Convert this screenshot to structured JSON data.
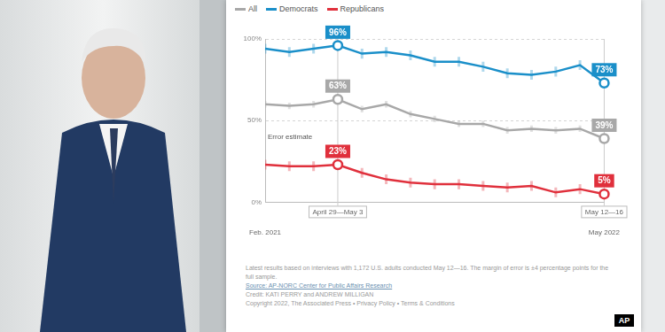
{
  "chart_data": {
    "type": "line",
    "categories": [
      "Feb. 2021",
      null,
      null,
      null,
      null,
      null,
      null,
      null,
      null,
      null,
      null,
      null,
      null,
      null,
      "May 2022"
    ],
    "series": [
      {
        "name": "All",
        "color": "#a8a8a8",
        "values": [
          60,
          59,
          60,
          63,
          57,
          60,
          54,
          51,
          48,
          48,
          44,
          45,
          44,
          45,
          39
        ],
        "errors": [
          2,
          2,
          2,
          2,
          2,
          2,
          2,
          2,
          2,
          2,
          2,
          2,
          2,
          2,
          2
        ],
        "value_labels": [
          null,
          null,
          null,
          "63%",
          null,
          null,
          null,
          null,
          null,
          null,
          null,
          null,
          null,
          null,
          "39%"
        ]
      },
      {
        "name": "Democrats",
        "color": "#1a8fc9",
        "values": [
          94,
          92,
          94,
          96,
          91,
          92,
          90,
          86,
          86,
          83,
          79,
          78,
          80,
          84,
          73
        ],
        "errors": [
          3,
          3,
          3,
          3,
          3,
          3,
          3,
          3,
          3,
          3,
          3,
          3,
          3,
          3,
          3
        ],
        "value_labels": [
          null,
          null,
          null,
          "96%",
          null,
          null,
          null,
          null,
          null,
          null,
          null,
          null,
          null,
          null,
          "73%"
        ]
      },
      {
        "name": "Republicans",
        "color": "#e0303c",
        "values": [
          23,
          22,
          22,
          23,
          18,
          14,
          12,
          11,
          11,
          10,
          9,
          10,
          6,
          8,
          5
        ],
        "errors": [
          3,
          3,
          3,
          3,
          3,
          3,
          3,
          3,
          3,
          3,
          3,
          3,
          3,
          3,
          3
        ],
        "value_labels": [
          null,
          null,
          null,
          "23%",
          null,
          null,
          null,
          null,
          null,
          null,
          null,
          null,
          null,
          null,
          "5%"
        ]
      }
    ],
    "highlights": [
      {
        "index": 3,
        "label": "April 29—May 3"
      },
      {
        "index": 14,
        "label": "May 12—16"
      }
    ],
    "annotations": [
      "Error estimate"
    ],
    "ylim": [
      0,
      100
    ],
    "yticks": [
      {
        "value": 0,
        "label": "0%"
      },
      {
        "value": 50,
        "label": "50%"
      },
      {
        "value": 100,
        "label": "100%"
      }
    ],
    "grid": true,
    "legend": "top-left",
    "notes": "Latest results based on interviews with 1,172 U.S. adults conducted May 12—16. The margin of error is ±4 percentage points for the full sample.",
    "source": "Source: AP-NORC Center for Public Affairs Research",
    "credit": "Credit: KATI PERRY and ANDREW MILLIGAN",
    "copyright": "Copyright 2022, The Associated Press • Privacy Policy • Terms & Conditions",
    "logo": "AP"
  }
}
